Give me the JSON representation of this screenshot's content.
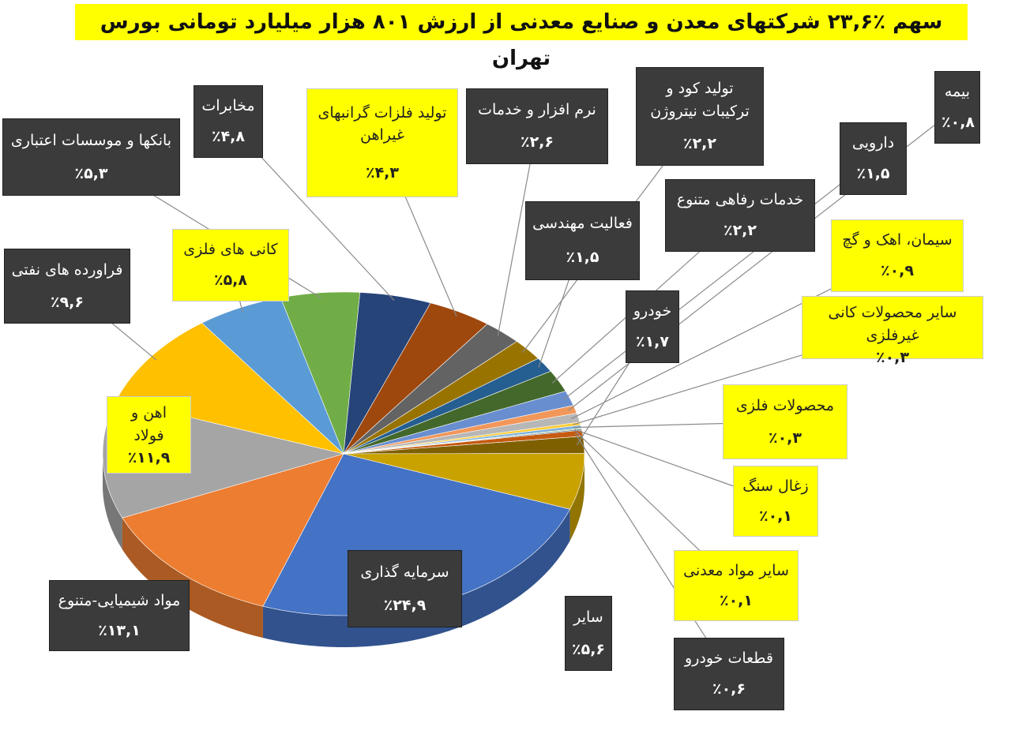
{
  "chart_data": {
    "type": "pie",
    "title": "سهم ٪۲۳,۶ شرکتهای معدن و صنایع معدنی از ارزش ۸۰۱ هزار میلیارد تومانی بورس تهران",
    "categories": [
      "سرمایه گذاری",
      "مواد شیمیایی-متنوع",
      "اهن و فولاد",
      "فراورده های نفتی",
      "کانی های فلزی",
      "بانکها و موسسات اعتباری",
      "مخابرات",
      "تولید فلزات گرانبهای غیراهن",
      "نرم افزار و خدمات",
      "تولید کود و ترکیبات نیتروژن",
      "فعالیت مهندسی",
      "خدمات رفاهی متنوع",
      "دارویی",
      "بیمه",
      "سیمان، اهک و گچ",
      "سایر محصولات کانی غیرفلزی",
      "محصولات فلزی",
      "زغال سنگ",
      "سایر مواد معدنی",
      "قطعات خودرو",
      "خودرو",
      "سایر"
    ],
    "values": [
      24.9,
      13.1,
      11.9,
      9.6,
      5.8,
      5.3,
      4.8,
      4.3,
      2.6,
      2.2,
      1.5,
      2.2,
      1.5,
      0.8,
      0.9,
      0.3,
      0.3,
      0.1,
      0.1,
      0.6,
      1.7,
      5.6
    ],
    "value_labels": [
      "٪۲۴,۹",
      "٪۱۳,۱",
      "٪۱۱,۹",
      "٪۹,۶",
      "٪۵,۸",
      "٪۵,۳",
      "٪۴,۸",
      "٪۴,۳",
      "٪۲,۶",
      "٪۲,۲",
      "٪۱,۵",
      "٪۲,۲",
      "٪۱,۵",
      "٪۰,۸",
      "٪۰,۹",
      "٪۰,۳",
      "٪۰,۳",
      "٪۰,۱",
      "٪۰,۱",
      "٪۰,۶",
      "٪۱,۷",
      "٪۵,۶"
    ],
    "colors": [
      "#4472c4",
      "#ed7d31",
      "#a5a5a5",
      "#ffc000",
      "#5b9bd5",
      "#70ad47",
      "#264478",
      "#9e480e",
      "#636363",
      "#997300",
      "#255e91",
      "#43682b",
      "#698ed0",
      "#f1975a",
      "#b7b7b7",
      "#ffcd33",
      "#7cafdd",
      "#8cc168",
      "#2f5597",
      "#c55a11",
      "#7f6000",
      "#c9a200"
    ]
  }
}
